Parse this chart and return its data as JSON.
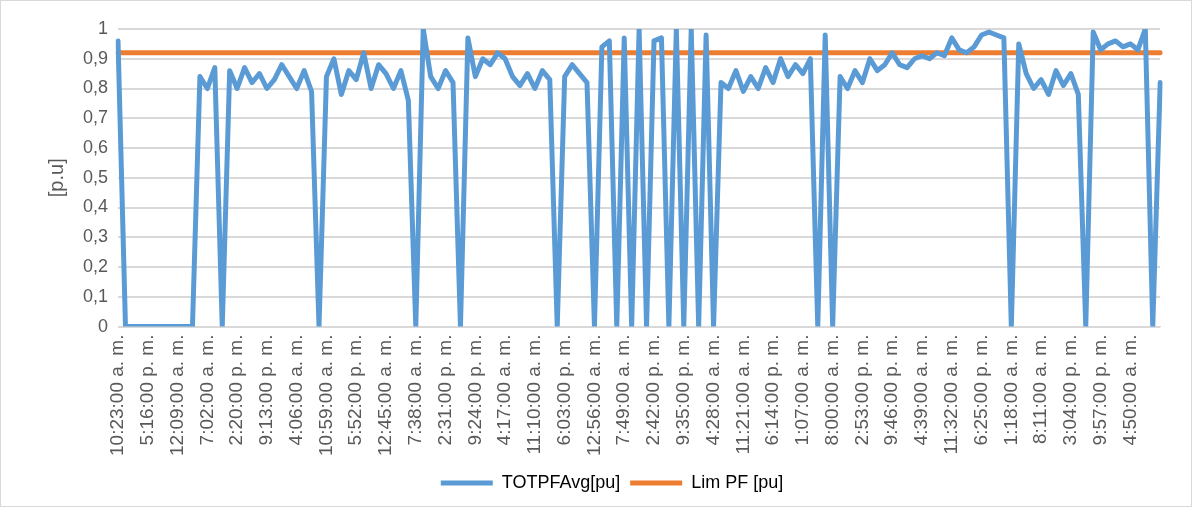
{
  "chart_data": {
    "type": "line",
    "ylabel": "[p.u]",
    "categories": [
      "10:23:00 a. m.",
      null,
      null,
      null,
      "5:16:00 p. m.",
      null,
      null,
      null,
      "12:09:00 a. m.",
      null,
      null,
      null,
      "7:02:00 a. m.",
      null,
      null,
      null,
      "2:20:00 p. m.",
      null,
      null,
      null,
      "9:13:00 p. m.",
      null,
      null,
      null,
      "4:06:00 a. m.",
      null,
      null,
      null,
      "10:59:00 a. m.",
      null,
      null,
      null,
      "5:52:00 p. m.",
      null,
      null,
      null,
      "12:45:00 a. m.",
      null,
      null,
      null,
      "7:38:00 a. m.",
      null,
      null,
      null,
      "2:31:00 p. m.",
      null,
      null,
      null,
      "9:24:00 p. m.",
      null,
      null,
      null,
      "4:17:00 a. m.",
      null,
      null,
      null,
      "11:10:00 a. m.",
      null,
      null,
      null,
      "6:03:00 p. m.",
      null,
      null,
      null,
      "12:56:00 a. m.",
      null,
      null,
      null,
      "7:49:00 a. m.",
      null,
      null,
      null,
      "2:42:00 p. m.",
      null,
      null,
      null,
      "9:35:00 p. m.",
      null,
      null,
      null,
      "4:28:00 a. m.",
      null,
      null,
      null,
      "11:21:00 a. m.",
      null,
      null,
      null,
      "6:14:00 p. m.",
      null,
      null,
      null,
      "1:07:00 a. m.",
      null,
      null,
      null,
      "8:00:00 a. m.",
      null,
      null,
      null,
      "2:53:00 p. m.",
      null,
      null,
      null,
      "9:46:00 p. m.",
      null,
      null,
      null,
      "4:39:00 a. m.",
      null,
      null,
      null,
      "11:32:00 a. m.",
      null,
      null,
      null,
      "6:25:00 p. m.",
      null,
      null,
      null,
      "1:18:00 a. m.",
      null,
      null,
      null,
      "8:11:00 a. m.",
      null,
      null,
      null,
      "3:04:00 p. m.",
      null,
      null,
      null,
      "9:57:00 p. m.",
      null,
      null,
      null,
      "4:50:00 a. m.",
      null,
      null,
      null,
      null
    ],
    "series": [
      {
        "name": "TOTPFAvg[pu]",
        "color": "#5b9bd5",
        "values": [
          0.96,
          0,
          0,
          0,
          0,
          0,
          0,
          0,
          0,
          0,
          0,
          0.84,
          0.8,
          0.87,
          0,
          0.86,
          0.8,
          0.87,
          0.82,
          0.85,
          0.8,
          0.83,
          0.88,
          0.84,
          0.8,
          0.86,
          0.79,
          0,
          0.84,
          0.9,
          0.78,
          0.86,
          0.83,
          0.92,
          0.8,
          0.88,
          0.85,
          0.8,
          0.86,
          0.76,
          0,
          1.0,
          0.84,
          0.8,
          0.86,
          0.82,
          0,
          0.97,
          0.84,
          0.9,
          0.88,
          0.92,
          0.9,
          0.84,
          0.81,
          0.85,
          0.8,
          0.86,
          0.83,
          0,
          0.84,
          0.88,
          0.85,
          0.82,
          0,
          0.94,
          0.96,
          0,
          0.97,
          0,
          1.0,
          0,
          0.96,
          0.97,
          0,
          1.0,
          0,
          1.0,
          0,
          0.98,
          0,
          0.82,
          0.8,
          0.86,
          0.79,
          0.84,
          0.8,
          0.87,
          0.82,
          0.9,
          0.84,
          0.88,
          0.85,
          0.9,
          0,
          0.98,
          0,
          0.84,
          0.8,
          0.86,
          0.82,
          0.9,
          0.86,
          0.88,
          0.92,
          0.88,
          0.87,
          0.9,
          0.91,
          0.9,
          0.92,
          0.91,
          0.97,
          0.93,
          0.92,
          0.94,
          0.98,
          0.99,
          0.98,
          0.97,
          0,
          0.95,
          0.85,
          0.8,
          0.83,
          0.78,
          0.86,
          0.81,
          0.85,
          0.78,
          0,
          0.99,
          0.93,
          0.95,
          0.96,
          0.94,
          0.95,
          0.93,
          1.0,
          0,
          0.82
        ]
      },
      {
        "name": "Lim PF [pu]",
        "color": "#ed7d31",
        "values": [
          0.92,
          0.92,
          0.92,
          0.92,
          0.92,
          0.92,
          0.92,
          0.92,
          0.92,
          0.92,
          0.92,
          0.92,
          0.92,
          0.92,
          0.92,
          0.92,
          0.92,
          0.92,
          0.92,
          0.92,
          0.92,
          0.92,
          0.92,
          0.92,
          0.92,
          0.92,
          0.92,
          0.92,
          0.92,
          0.92,
          0.92,
          0.92,
          0.92,
          0.92,
          0.92,
          0.92,
          0.92,
          0.92,
          0.92,
          0.92,
          0.92,
          0.92,
          0.92,
          0.92,
          0.92,
          0.92,
          0.92,
          0.92,
          0.92,
          0.92,
          0.92,
          0.92,
          0.92,
          0.92,
          0.92,
          0.92,
          0.92,
          0.92,
          0.92,
          0.92,
          0.92,
          0.92,
          0.92,
          0.92,
          0.92,
          0.92,
          0.92,
          0.92,
          0.92,
          0.92,
          0.92,
          0.92,
          0.92,
          0.92,
          0.92,
          0.92,
          0.92,
          0.92,
          0.92,
          0.92,
          0.92,
          0.92,
          0.92,
          0.92,
          0.92,
          0.92,
          0.92,
          0.92,
          0.92,
          0.92,
          0.92,
          0.92,
          0.92,
          0.92,
          0.92,
          0.92,
          0.92,
          0.92,
          0.92,
          0.92,
          0.92,
          0.92,
          0.92,
          0.92,
          0.92,
          0.92,
          0.92,
          0.92,
          0.92,
          0.92,
          0.92,
          0.92,
          0.92,
          0.92,
          0.92,
          0.92,
          0.92,
          0.92,
          0.92,
          0.92,
          0.92,
          0.92,
          0.92,
          0.92,
          0.92,
          0.92,
          0.92,
          0.92,
          0.92,
          0.92,
          0.92,
          0.92,
          0.92,
          0.92,
          0.92,
          0.92,
          0.92,
          0.92,
          0.92,
          0.92,
          0.92
        ]
      }
    ],
    "ylim": [
      0,
      1
    ],
    "yticks": [
      0,
      {
        "value": 0.1,
        "label": "0,1"
      },
      {
        "value": 0.2,
        "label": "0,2"
      },
      {
        "value": 0.3,
        "label": "0,3"
      },
      {
        "value": 0.4,
        "label": "0,4"
      },
      {
        "value": 0.5,
        "label": "0,5"
      },
      {
        "value": 0.6,
        "label": "0,6"
      },
      {
        "value": 0.7,
        "label": "0,7"
      },
      {
        "value": 0.8,
        "label": "0,8"
      },
      {
        "value": 0.9,
        "label": "0,9"
      },
      1
    ],
    "grid": "y",
    "legend": "bottom",
    "marker": "none",
    "line_style": "solid"
  }
}
